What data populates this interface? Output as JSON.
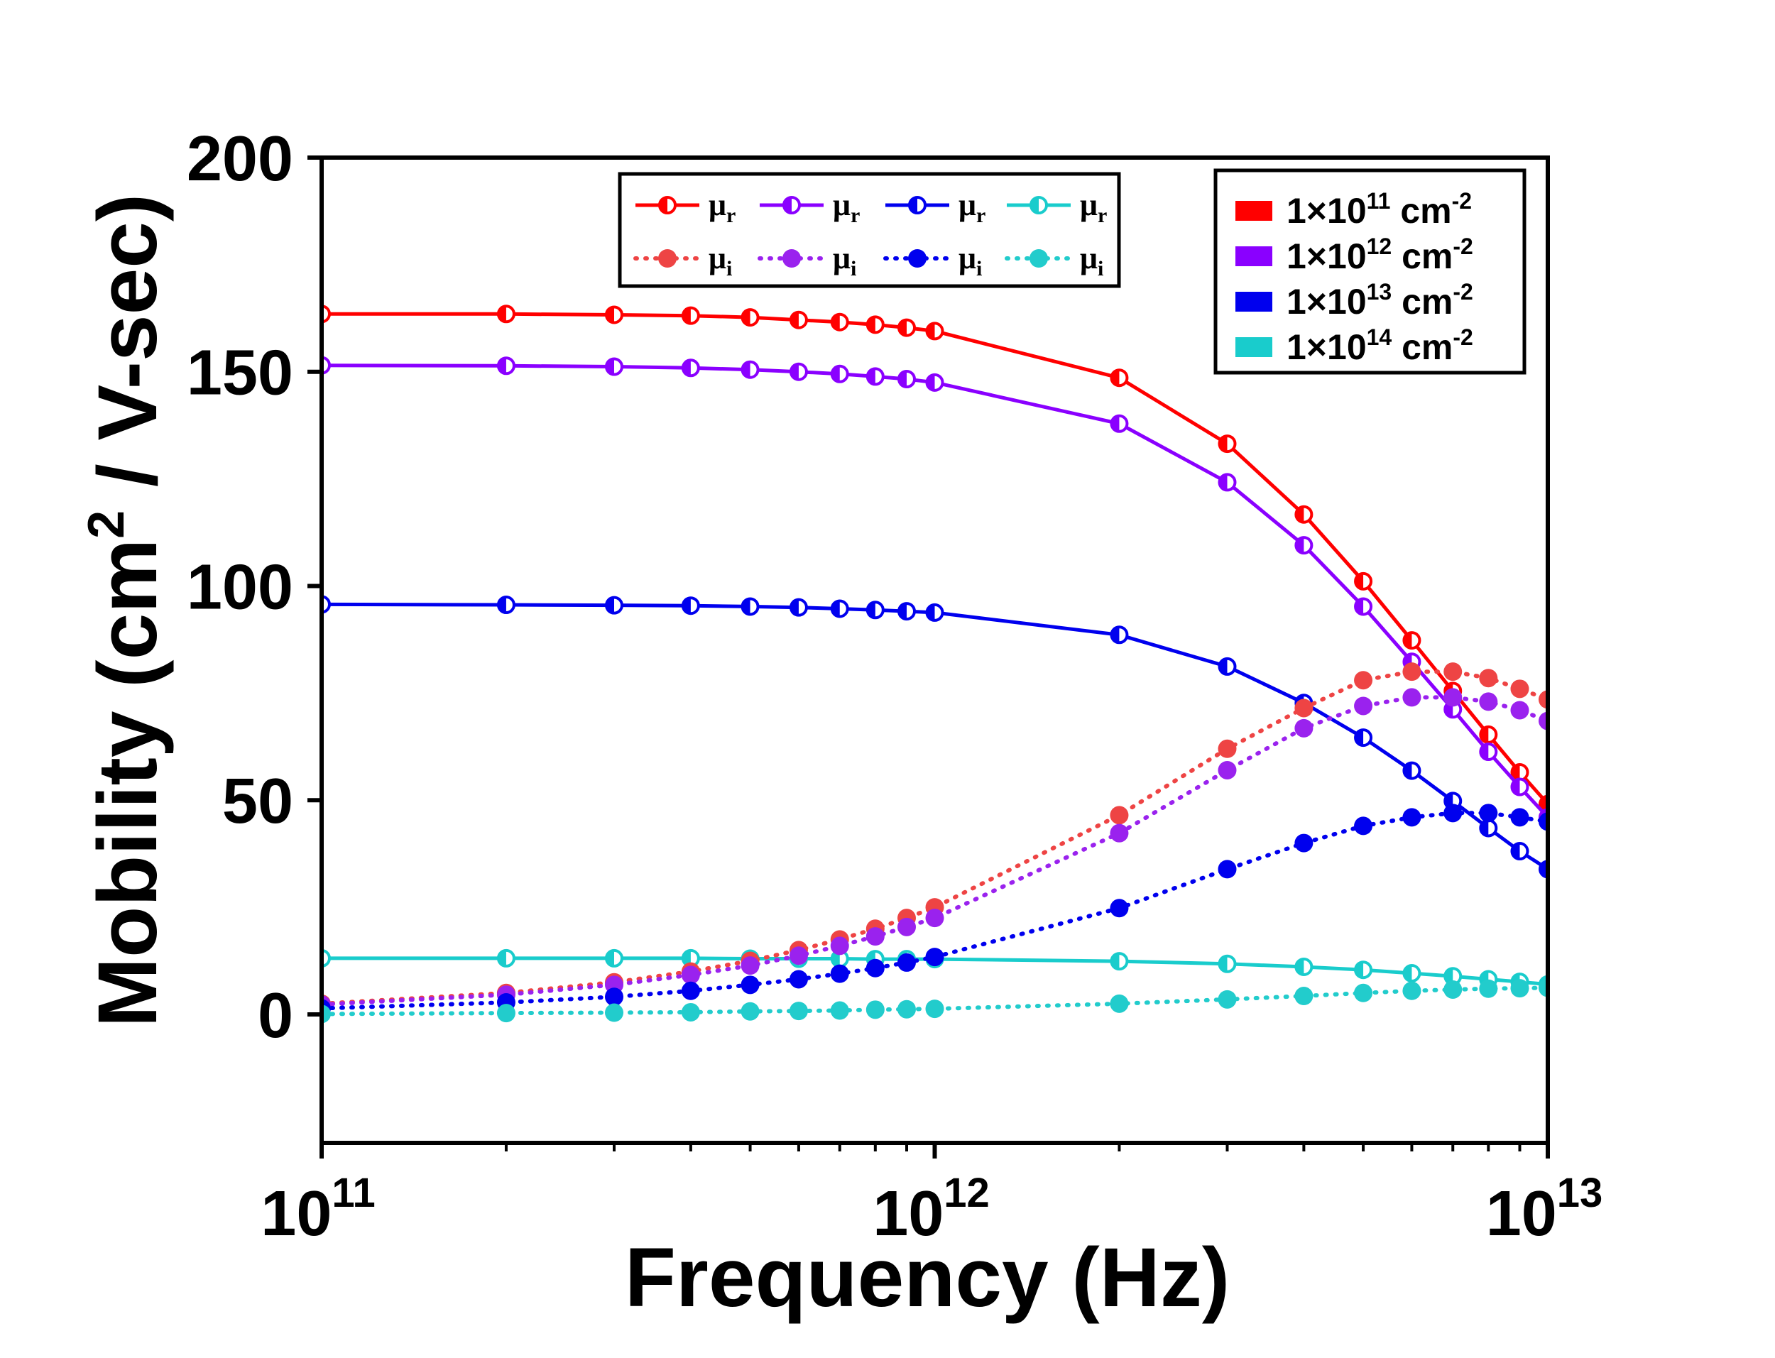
{
  "chart_data": {
    "type": "line",
    "xlabel": "Frequency (Hz)",
    "ylabel_main": "Mobility (cm",
    "ylabel_sup": "2",
    "ylabel_tail": " / V-sec)",
    "xscale": "log",
    "xlim": [
      100000000000.0,
      10000000000000.0
    ],
    "ylim": [
      -30,
      200
    ],
    "yticks": [
      0,
      50,
      100,
      150,
      200
    ],
    "xticks": [
      {
        "value": 100000000000.0,
        "base": "10",
        "exp": "11"
      },
      {
        "value": 1000000000000.0,
        "base": "10",
        "exp": "12"
      },
      {
        "value": 10000000000000.0,
        "base": "10",
        "exp": "13"
      }
    ],
    "x": [
      100000000000.0,
      200000000000.0,
      300000000000.0,
      400000000000.0,
      500000000000.0,
      600000000000.0,
      700000000000.0,
      800000000000.0,
      900000000000.0,
      1000000000000.0,
      2000000000000.0,
      3000000000000.0,
      4000000000000.0,
      5000000000000.0,
      6000000000000.0,
      7000000000000.0,
      8000000000000.0,
      9000000000000.0,
      10000000000000.0
    ],
    "series": [
      {
        "name": "1×10^11 cm^-2",
        "component": "mu_r",
        "color": "#ff0000",
        "values": [
          163.5,
          163.5,
          163.3,
          163.1,
          162.7,
          162.1,
          161.6,
          161.0,
          160.3,
          159.5,
          148.6,
          133.2,
          116.7,
          101.1,
          87.3,
          75.5,
          65.3,
          56.5,
          49.1
        ]
      },
      {
        "name": "1×10^12 cm^-2",
        "component": "mu_r",
        "color": "#8a00ff",
        "values": [
          151.5,
          151.4,
          151.2,
          150.9,
          150.5,
          150.0,
          149.5,
          148.9,
          148.3,
          147.5,
          137.9,
          124.2,
          109.5,
          95.2,
          82.3,
          71.2,
          61.3,
          53.1,
          46.0
        ]
      },
      {
        "name": "1×10^13 cm^-2",
        "component": "mu_r",
        "color": "#0000ee",
        "values": [
          95.7,
          95.6,
          95.5,
          95.4,
          95.2,
          95.0,
          94.7,
          94.4,
          94.1,
          93.8,
          88.6,
          81.2,
          72.7,
          64.6,
          56.9,
          49.8,
          43.5,
          38.1,
          33.9
        ]
      },
      {
        "name": "1×10^14 cm^-2",
        "component": "mu_r",
        "color": "#19cccc",
        "values": [
          13.1,
          13.1,
          13.1,
          13.1,
          13.0,
          13.0,
          13.0,
          12.9,
          12.9,
          12.9,
          12.4,
          11.8,
          11.1,
          10.4,
          9.6,
          8.9,
          8.2,
          7.6,
          7.0
        ]
      },
      {
        "name": "1×10^11 cm^-2",
        "component": "mu_i",
        "color": "#ee4444",
        "values": [
          2.5,
          5.0,
          7.5,
          10.0,
          12.5,
          15.0,
          17.5,
          20.0,
          22.5,
          25.0,
          46.5,
          62.0,
          71.5,
          78.0,
          80.0,
          80.0,
          78.5,
          76.0,
          73.5
        ]
      },
      {
        "name": "1×10^12 cm^-2",
        "component": "mu_i",
        "color": "#9a22ee",
        "values": [
          2.3,
          4.6,
          6.9,
          9.2,
          11.4,
          13.7,
          16.0,
          18.2,
          20.4,
          22.5,
          42.3,
          57.0,
          66.8,
          72.0,
          74.0,
          74.0,
          73.0,
          71.0,
          68.5
        ]
      },
      {
        "name": "1×10^13 cm^-2",
        "component": "mu_i",
        "color": "#0000ee",
        "values": [
          1.4,
          2.8,
          4.1,
          5.5,
          6.9,
          8.2,
          9.5,
          10.8,
          12.1,
          13.4,
          24.8,
          33.9,
          40.0,
          44.0,
          46.0,
          47.0,
          47.0,
          46.0,
          45.0
        ]
      },
      {
        "name": "1×10^14 cm^-2",
        "component": "mu_i",
        "color": "#22cccc",
        "values": [
          0.1,
          0.3,
          0.4,
          0.5,
          0.7,
          0.8,
          0.9,
          1.1,
          1.2,
          1.3,
          2.5,
          3.5,
          4.3,
          5.0,
          5.5,
          5.8,
          6.0,
          6.1,
          6.2
        ]
      }
    ],
    "legend_left": {
      "placement": "top-center",
      "mu_r_label": "μ",
      "mu_r_sub": "r",
      "mu_i_label": "μ",
      "mu_i_sub": "i"
    },
    "legend_right": {
      "placement": "top-right",
      "entries": [
        {
          "color": "#ff0000",
          "base": "1×10",
          "exp": "11",
          "unit": " cm",
          "unit_exp": "-2"
        },
        {
          "color": "#8a00ff",
          "base": "1×10",
          "exp": "12",
          "unit": " cm",
          "unit_exp": "-2"
        },
        {
          "color": "#0000ee",
          "base": "1×10",
          "exp": "13",
          "unit": " cm",
          "unit_exp": "-2"
        },
        {
          "color": "#19cccc",
          "base": "1×10",
          "exp": "14",
          "unit": " cm",
          "unit_exp": "-2"
        }
      ]
    }
  }
}
